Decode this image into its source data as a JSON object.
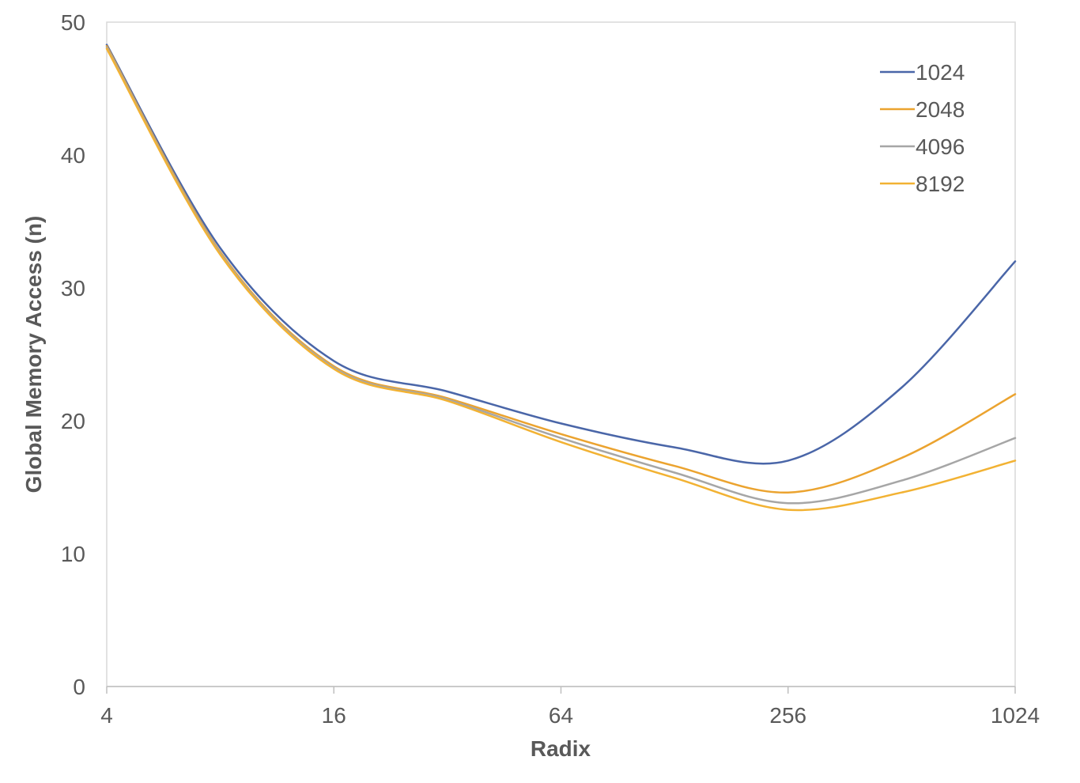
{
  "chart_data": {
    "type": "line",
    "xlabel": "Radix",
    "ylabel": "Global Memory Access (n)",
    "x_scale": "log2",
    "x": [
      4,
      8,
      16,
      32,
      64,
      128,
      256,
      512,
      1024
    ],
    "xticks": [
      4,
      16,
      64,
      256,
      1024
    ],
    "xtick_labels": [
      "4",
      "16",
      "64",
      "256",
      "1024"
    ],
    "xlim": [
      4,
      1024
    ],
    "ylim": [
      0,
      50
    ],
    "yticks": [
      0,
      10,
      20,
      30,
      40,
      50
    ],
    "ytick_labels": [
      "0",
      "10",
      "20",
      "30",
      "40",
      "50"
    ],
    "grid": false,
    "legend_position": "top-right",
    "series": [
      {
        "name": "1024",
        "color": "#4a66a8",
        "values": [
          48.3,
          33.0,
          24.5,
          22.2,
          19.8,
          18.0,
          17.0,
          22.5,
          32.0
        ]
      },
      {
        "name": "2048",
        "color": "#eba32f",
        "values": [
          48.2,
          32.7,
          24.1,
          21.7,
          19.0,
          16.6,
          14.6,
          17.2,
          22.0
        ]
      },
      {
        "name": "4096",
        "color": "#a6a6a6",
        "values": [
          48.1,
          32.6,
          24.0,
          21.6,
          18.7,
          16.1,
          13.8,
          15.5,
          18.7
        ]
      },
      {
        "name": "8192",
        "color": "#f2b233",
        "values": [
          48.0,
          32.5,
          23.9,
          21.5,
          18.4,
          15.7,
          13.3,
          14.6,
          17.0
        ]
      }
    ]
  }
}
